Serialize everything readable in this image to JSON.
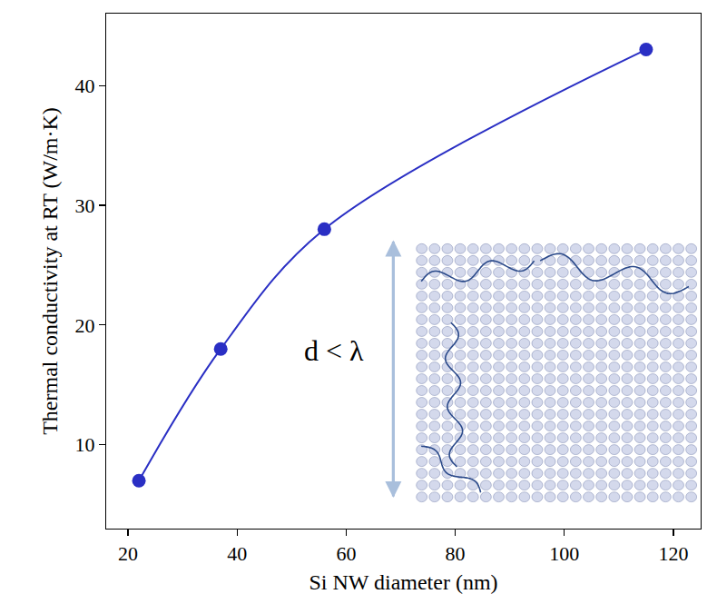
{
  "chart_data": {
    "type": "line",
    "x_label": "Si NW diameter (nm)",
    "y_label": "Thermal conductivity at RT (W/m·K)",
    "x": [
      22,
      37,
      56,
      115
    ],
    "values": [
      7,
      18,
      28,
      43
    ],
    "color": "#2a2fc4",
    "marker": "circle",
    "line_style": "solid",
    "xlim": [
      16,
      125
    ],
    "xticks": [
      20,
      40,
      60,
      80,
      100,
      120
    ],
    "ylim": [
      3,
      46
    ],
    "yticks": [
      10,
      20,
      30,
      40
    ],
    "grid": false,
    "annotations": [
      "d < λ"
    ]
  }
}
